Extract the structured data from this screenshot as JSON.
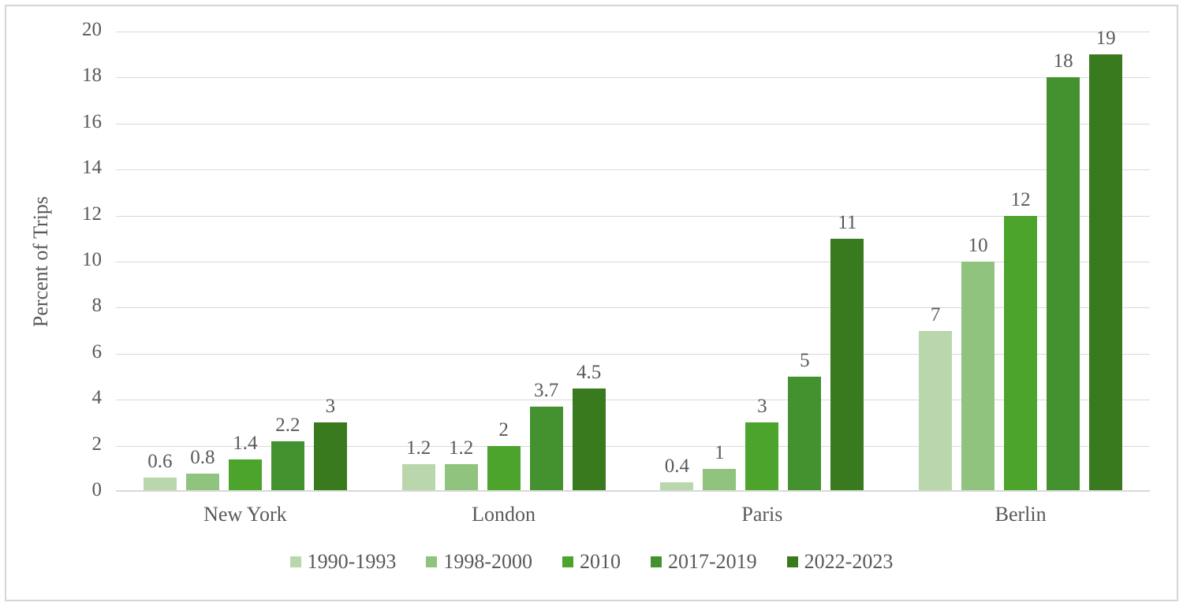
{
  "chart_data": {
    "type": "bar",
    "title": "",
    "xlabel": "",
    "ylabel": "Percent of Trips",
    "ylim": [
      0,
      20
    ],
    "ytick_step": 2,
    "yticks": [
      0,
      2,
      4,
      6,
      8,
      10,
      12,
      14,
      16,
      18,
      20
    ],
    "grid": true,
    "legend_position": "bottom",
    "categories": [
      "New York",
      "London",
      "Paris",
      "Berlin"
    ],
    "series": [
      {
        "name": "1990-1993",
        "color": "#bad6ac",
        "values": [
          0.6,
          1.2,
          0.4,
          7
        ]
      },
      {
        "name": "1998-2000",
        "color": "#8fc37e",
        "values": [
          0.8,
          1.2,
          1,
          10
        ]
      },
      {
        "name": "2010",
        "color": "#4ca42d",
        "values": [
          1.4,
          2,
          3,
          12
        ]
      },
      {
        "name": "2017-2019",
        "color": "#43912f",
        "values": [
          2.2,
          3.7,
          5,
          18
        ]
      },
      {
        "name": "2022-2023",
        "color": "#3a7a1f",
        "values": [
          3,
          4.5,
          11,
          19
        ]
      }
    ],
    "bar_labels": [
      [
        "0.6",
        "0.8",
        "1.4",
        "2.2",
        "3"
      ],
      [
        "1.2",
        "1.2",
        "2",
        "3.7",
        "4.5"
      ],
      [
        "0.4",
        "1",
        "3",
        "5",
        "11"
      ],
      [
        "7",
        "10",
        "12",
        "18",
        "19"
      ]
    ]
  },
  "style": {
    "text_color": "#595959",
    "gridline_color": "#d9d9d9",
    "frame_border_color": "#d8d5d5",
    "background": "#ffffff"
  }
}
